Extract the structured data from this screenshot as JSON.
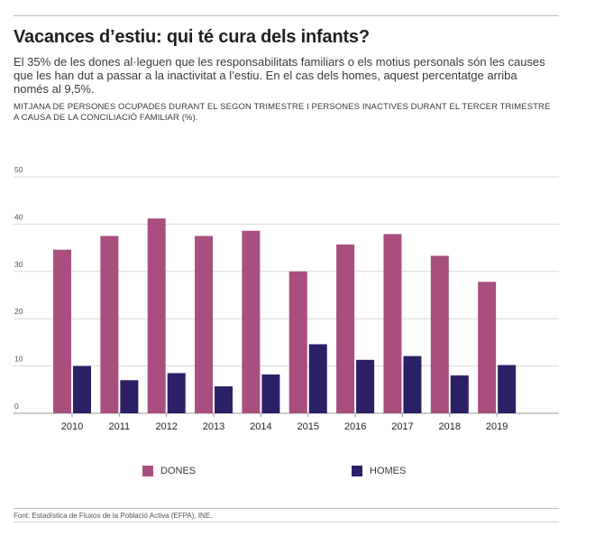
{
  "header": {
    "title": "Vacances d’estiu: qui té cura dels infants?",
    "subtitle": "El 35% de les dones al·leguen que les responsabilitats familiars o els motius personals són les causes que les han dut a passar a la inactivitat a l’estiu. En el cas dels homes, aquest percentatge arriba només al 9,5%.",
    "measure": "MITJANA DE PERSONES OCUPADES DURANT EL SEGON TRIMESTRE I PERSONES INACTIVES DURANT EL TERCER TRIMESTRE A CAUSA DE LA CONCILIACIÓ FAMILIAR (%)."
  },
  "colors": {
    "dones": "#a84f80",
    "homes": "#2b1f66",
    "grid": "#d9d9d9",
    "axis": "#9a9a9a"
  },
  "chart_data": {
    "type": "bar",
    "categories": [
      "2010",
      "2011",
      "2012",
      "2013",
      "2014",
      "2015",
      "2016",
      "2017",
      "2018",
      "2019"
    ],
    "series": [
      {
        "name": "DONES",
        "values": [
          34.6,
          37.5,
          41.2,
          37.5,
          38.6,
          30.0,
          35.7,
          37.9,
          33.3,
          27.8
        ]
      },
      {
        "name": "HOMES",
        "values": [
          10.0,
          7.0,
          8.5,
          5.7,
          8.2,
          14.6,
          11.3,
          12.1,
          8.0,
          10.2
        ]
      }
    ],
    "yticks": [
      "50",
      "40",
      "30",
      "20",
      "10",
      "0"
    ],
    "ylim": [
      0,
      50
    ],
    "grid": true,
    "title": "",
    "xlabel": "",
    "ylabel": "",
    "legend_position": "bottom"
  },
  "legend": {
    "dones_label": "DONES",
    "homes_label": "HOMES"
  },
  "source": "Font: Estadística de Fluxos de la Població Activa (EFPA), INE."
}
